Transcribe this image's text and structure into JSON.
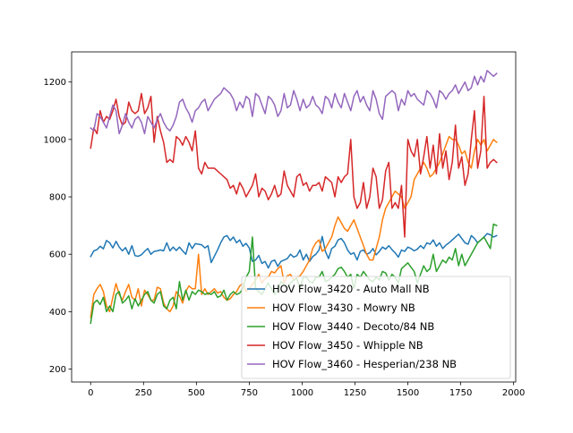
{
  "chart_data": {
    "type": "line",
    "title": "",
    "xlabel": "",
    "ylabel": "",
    "xlim": [
      -90,
      2010
    ],
    "ylim": [
      155,
      1305
    ],
    "x_ticks": [
      0,
      250,
      500,
      750,
      1000,
      1250,
      1500,
      1750,
      2000
    ],
    "y_ticks": [
      200,
      400,
      600,
      800,
      1000,
      1200
    ],
    "grid": false,
    "legend_position": "lower-right",
    "x": [
      0,
      15,
      30,
      45,
      60,
      75,
      90,
      105,
      120,
      135,
      150,
      165,
      180,
      195,
      210,
      225,
      240,
      255,
      270,
      285,
      300,
      315,
      330,
      345,
      360,
      375,
      390,
      405,
      420,
      435,
      450,
      465,
      480,
      495,
      510,
      525,
      540,
      555,
      570,
      585,
      600,
      615,
      630,
      645,
      660,
      675,
      690,
      705,
      720,
      735,
      750,
      765,
      780,
      795,
      810,
      825,
      840,
      855,
      870,
      885,
      900,
      915,
      930,
      945,
      960,
      975,
      990,
      1005,
      1020,
      1035,
      1050,
      1065,
      1080,
      1095,
      1110,
      1125,
      1140,
      1155,
      1170,
      1185,
      1200,
      1215,
      1230,
      1245,
      1260,
      1275,
      1290,
      1305,
      1320,
      1335,
      1350,
      1365,
      1380,
      1395,
      1410,
      1425,
      1440,
      1455,
      1470,
      1485,
      1500,
      1515,
      1530,
      1545,
      1560,
      1575,
      1590,
      1605,
      1620,
      1635,
      1650,
      1665,
      1680,
      1695,
      1710,
      1725,
      1740,
      1755,
      1770,
      1785,
      1800,
      1815,
      1830,
      1845,
      1860,
      1875,
      1890,
      1905,
      1920
    ],
    "series": [
      {
        "name": "HOV Flow_3420 - Auto Mall NB",
        "color": "#1f77b4",
        "values": [
          592,
          612,
          616,
          628,
          619,
          648,
          640,
          622,
          645,
          625,
          612,
          623,
          600,
          630,
          595,
          593,
          598,
          610,
          620,
          600,
          610,
          612,
          615,
          612,
          640,
          612,
          625,
          613,
          625,
          612,
          600,
          640,
          620,
          637,
          635,
          633,
          622,
          630,
          571,
          593,
          615,
          640,
          660,
          665,
          648,
          660,
          640,
          650,
          628,
          638,
          622,
          575,
          580,
          596,
          568,
          575,
          552,
          575,
          580,
          558,
          575,
          580,
          585,
          600,
          590,
          595,
          615,
          580,
          600,
          575,
          592,
          600,
          615,
          662,
          610,
          585,
          620,
          628,
          650,
          655,
          640,
          615,
          600,
          605,
          580,
          610,
          615,
          600,
          605,
          620,
          598,
          610,
          625,
          618,
          630,
          616,
          605,
          590,
          615,
          610,
          625,
          620,
          612,
          618,
          630,
          620,
          640,
          635,
          650,
          628,
          640,
          620,
          632,
          640,
          650,
          660,
          670,
          655,
          640,
          635,
          665,
          655,
          640,
          650,
          660,
          672,
          668,
          660,
          665
        ]
      },
      {
        "name": "HOV Flow_3430 - Mowry NB",
        "color": "#ff7f0e",
        "values": [
          380,
          460,
          480,
          495,
          470,
          420,
          400,
          450,
          498,
          460,
          440,
          470,
          495,
          450,
          440,
          480,
          420,
          475,
          460,
          440,
          440,
          485,
          480,
          430,
          410,
          400,
          420,
          470,
          455,
          430,
          470,
          490,
          480,
          480,
          600,
          460,
          480,
          460,
          470,
          480,
          465,
          470,
          450,
          440,
          445,
          460,
          470,
          490,
          498,
          470,
          480,
          495,
          510,
          530,
          500,
          515,
          520,
          540,
          535,
          550,
          560,
          500,
          525,
          530,
          510,
          520,
          525,
          540,
          560,
          580,
          620,
          640,
          650,
          610,
          620,
          640,
          660,
          700,
          730,
          710,
          690,
          680,
          700,
          720,
          690,
          660,
          630,
          600,
          580,
          580,
          620,
          660,
          720,
          760,
          780,
          800,
          820,
          810,
          800,
          760,
          780,
          800,
          860,
          880,
          900,
          920,
          900,
          870,
          880,
          900,
          920,
          950,
          980,
          1010,
          1000,
          1000,
          980,
          950,
          960,
          920,
          900,
          960,
          1000,
          980,
          1000,
          960,
          980,
          1000,
          990
        ]
      },
      {
        "name": "HOV Flow_3440 - Decoto/84 NB",
        "color": "#2ca02c",
        "values": [
          360,
          430,
          440,
          425,
          450,
          400,
          420,
          400,
          460,
          470,
          430,
          440,
          455,
          410,
          445,
          420,
          440,
          460,
          470,
          440,
          430,
          460,
          470,
          420,
          410,
          440,
          450,
          410,
          505,
          440,
          475,
          440,
          470,
          460,
          475,
          470,
          460,
          465,
          460,
          470,
          450,
          455,
          475,
          440,
          460,
          470,
          460,
          465,
          480,
          520,
          540,
          660,
          480,
          470,
          460,
          480,
          500,
          480,
          460,
          475,
          505,
          495,
          480,
          500,
          510,
          515,
          480,
          520,
          520,
          505,
          500,
          520,
          520,
          540,
          505,
          510,
          520,
          530,
          550,
          555,
          540,
          520,
          530,
          480,
          530,
          520,
          540,
          525,
          510,
          505,
          520,
          510,
          540,
          535,
          510,
          530,
          520,
          500,
          550,
          560,
          570,
          555,
          540,
          500,
          530,
          560,
          540,
          550,
          600,
          540,
          560,
          580,
          570,
          590,
          580,
          620,
          560,
          600,
          560,
          580,
          600,
          620,
          640,
          650,
          660,
          640,
          620,
          705,
          700
        ]
      },
      {
        "name": "HOV Flow_3450 - Whipple NB",
        "color": "#d62728",
        "values": [
          970,
          1040,
          1020,
          1100,
          1060,
          1080,
          1070,
          1100,
          1140,
          1080,
          1050,
          1060,
          1130,
          1100,
          1090,
          1100,
          1160,
          1090,
          1110,
          1150,
          990,
          1080,
          1030,
          990,
          920,
          930,
          920,
          1010,
          1000,
          980,
          1010,
          990,
          960,
          1030,
          900,
          880,
          920,
          900,
          900,
          900,
          890,
          880,
          870,
          860,
          830,
          840,
          810,
          850,
          830,
          800,
          820,
          840,
          880,
          800,
          830,
          820,
          790,
          810,
          840,
          800,
          810,
          890,
          840,
          820,
          800,
          870,
          880,
          840,
          850,
          820,
          840,
          840,
          850,
          820,
          870,
          860,
          850,
          800,
          870,
          850,
          870,
          880,
          1000,
          800,
          760,
          780,
          850,
          760,
          800,
          900,
          870,
          760,
          790,
          890,
          920,
          760,
          780,
          760,
          840,
          660,
          1000,
          960,
          940,
          1000,
          880,
          940,
          1010,
          900,
          980,
          880,
          1020,
          900,
          960,
          860,
          920,
          1050,
          900,
          940,
          840,
          880,
          1000,
          1100,
          900,
          960,
          1150,
          900,
          920,
          930,
          920
        ]
      },
      {
        "name": "HOV Flow_3460 - Hesperian/238 NB",
        "color": "#9467bd",
        "values": [
          1040,
          1030,
          1090,
          1080,
          1060,
          1040,
          1080,
          1120,
          1100,
          1020,
          1050,
          1090,
          1060,
          1040,
          1070,
          1080,
          1060,
          1020,
          1080,
          1060,
          1040,
          1070,
          1090,
          1060,
          1040,
          1030,
          1050,
          1080,
          1130,
          1140,
          1110,
          1090,
          1060,
          1100,
          1110,
          1130,
          1140,
          1100,
          1120,
          1140,
          1150,
          1160,
          1180,
          1170,
          1160,
          1140,
          1100,
          1130,
          1110,
          1150,
          1140,
          1080,
          1160,
          1150,
          1120,
          1090,
          1150,
          1140,
          1120,
          1080,
          1100,
          1160,
          1110,
          1120,
          1170,
          1140,
          1100,
          1140,
          1110,
          1120,
          1150,
          1120,
          1110,
          1090,
          1150,
          1140,
          1110,
          1160,
          1130,
          1110,
          1160,
          1130,
          1100,
          1150,
          1170,
          1130,
          1150,
          1120,
          1100,
          1170,
          1140,
          1090,
          1070,
          1150,
          1160,
          1170,
          1160,
          1100,
          1140,
          1120,
          1170,
          1150,
          1160,
          1140,
          1130,
          1120,
          1170,
          1160,
          1140,
          1110,
          1170,
          1160,
          1140,
          1160,
          1170,
          1190,
          1160,
          1180,
          1200,
          1170,
          1180,
          1220,
          1190,
          1220,
          1200,
          1240,
          1230,
          1220,
          1230
        ]
      }
    ]
  }
}
